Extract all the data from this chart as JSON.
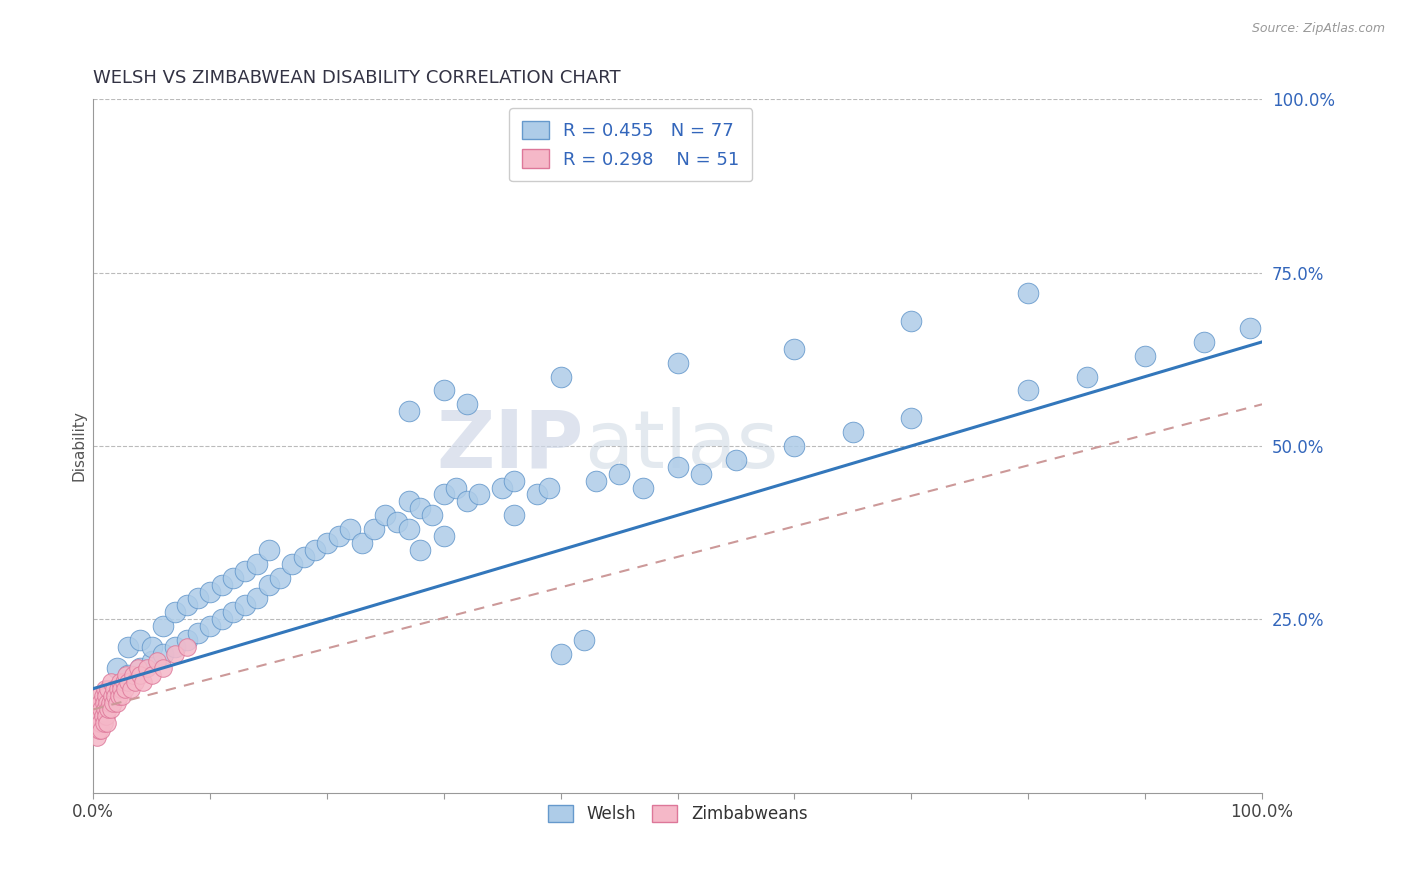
{
  "title": "WELSH VS ZIMBABWEAN DISABILITY CORRELATION CHART",
  "source": "Source: ZipAtlas.com",
  "ylabel": "Disability",
  "xlim": [
    0.0,
    1.0
  ],
  "ylim": [
    0.0,
    1.0
  ],
  "welsh_R": 0.455,
  "welsh_N": 77,
  "zimb_R": 0.298,
  "zimb_N": 51,
  "welsh_color": "#aecce8",
  "welsh_edge_color": "#6699cc",
  "zimb_color": "#f5b8c8",
  "zimb_edge_color": "#dd7799",
  "trend_welsh_color": "#3377bb",
  "trend_zimb_color": "#cc9999",
  "watermark_zip": "ZIP",
  "watermark_atlas": "atlas",
  "welsh_trend_x0": 0.0,
  "welsh_trend_y0": 0.15,
  "welsh_trend_x1": 1.0,
  "welsh_trend_y1": 0.65,
  "zimb_trend_x0": 0.0,
  "zimb_trend_y0": 0.12,
  "zimb_trend_x1": 1.0,
  "zimb_trend_y1": 0.56,
  "welsh_x": [
    0.02,
    0.03,
    0.03,
    0.04,
    0.04,
    0.05,
    0.05,
    0.06,
    0.06,
    0.07,
    0.07,
    0.08,
    0.08,
    0.09,
    0.09,
    0.1,
    0.1,
    0.11,
    0.11,
    0.12,
    0.12,
    0.13,
    0.13,
    0.14,
    0.14,
    0.15,
    0.15,
    0.16,
    0.17,
    0.18,
    0.19,
    0.2,
    0.21,
    0.22,
    0.23,
    0.24,
    0.25,
    0.26,
    0.27,
    0.27,
    0.28,
    0.28,
    0.29,
    0.3,
    0.3,
    0.31,
    0.32,
    0.33,
    0.35,
    0.36,
    0.36,
    0.38,
    0.39,
    0.4,
    0.42,
    0.43,
    0.45,
    0.47,
    0.5,
    0.52,
    0.55,
    0.6,
    0.65,
    0.7,
    0.8,
    0.85,
    0.9,
    0.95,
    0.99,
    0.27,
    0.3,
    0.32,
    0.4,
    0.5,
    0.6,
    0.7,
    0.8
  ],
  "welsh_y": [
    0.18,
    0.17,
    0.21,
    0.18,
    0.22,
    0.19,
    0.21,
    0.2,
    0.24,
    0.21,
    0.26,
    0.22,
    0.27,
    0.23,
    0.28,
    0.24,
    0.29,
    0.25,
    0.3,
    0.26,
    0.31,
    0.27,
    0.32,
    0.28,
    0.33,
    0.3,
    0.35,
    0.31,
    0.33,
    0.34,
    0.35,
    0.36,
    0.37,
    0.38,
    0.36,
    0.38,
    0.4,
    0.39,
    0.38,
    0.42,
    0.41,
    0.35,
    0.4,
    0.43,
    0.37,
    0.44,
    0.42,
    0.43,
    0.44,
    0.4,
    0.45,
    0.43,
    0.44,
    0.2,
    0.22,
    0.45,
    0.46,
    0.44,
    0.47,
    0.46,
    0.48,
    0.5,
    0.52,
    0.54,
    0.58,
    0.6,
    0.63,
    0.65,
    0.67,
    0.55,
    0.58,
    0.56,
    0.6,
    0.62,
    0.64,
    0.68,
    0.72
  ],
  "zimb_x": [
    0.003,
    0.004,
    0.004,
    0.005,
    0.005,
    0.005,
    0.006,
    0.006,
    0.007,
    0.007,
    0.008,
    0.008,
    0.009,
    0.009,
    0.01,
    0.01,
    0.011,
    0.011,
    0.012,
    0.012,
    0.013,
    0.013,
    0.014,
    0.015,
    0.015,
    0.016,
    0.017,
    0.018,
    0.019,
    0.02,
    0.021,
    0.022,
    0.023,
    0.024,
    0.025,
    0.026,
    0.027,
    0.028,
    0.03,
    0.032,
    0.034,
    0.036,
    0.038,
    0.04,
    0.043,
    0.046,
    0.05,
    0.055,
    0.06,
    0.07,
    0.08
  ],
  "zimb_y": [
    0.08,
    0.1,
    0.12,
    0.09,
    0.11,
    0.14,
    0.1,
    0.13,
    0.09,
    0.12,
    0.11,
    0.14,
    0.1,
    0.13,
    0.12,
    0.15,
    0.11,
    0.14,
    0.1,
    0.13,
    0.12,
    0.15,
    0.13,
    0.12,
    0.16,
    0.14,
    0.13,
    0.15,
    0.14,
    0.13,
    0.15,
    0.14,
    0.16,
    0.15,
    0.14,
    0.16,
    0.15,
    0.17,
    0.16,
    0.15,
    0.17,
    0.16,
    0.18,
    0.17,
    0.16,
    0.18,
    0.17,
    0.19,
    0.18,
    0.2,
    0.21
  ]
}
